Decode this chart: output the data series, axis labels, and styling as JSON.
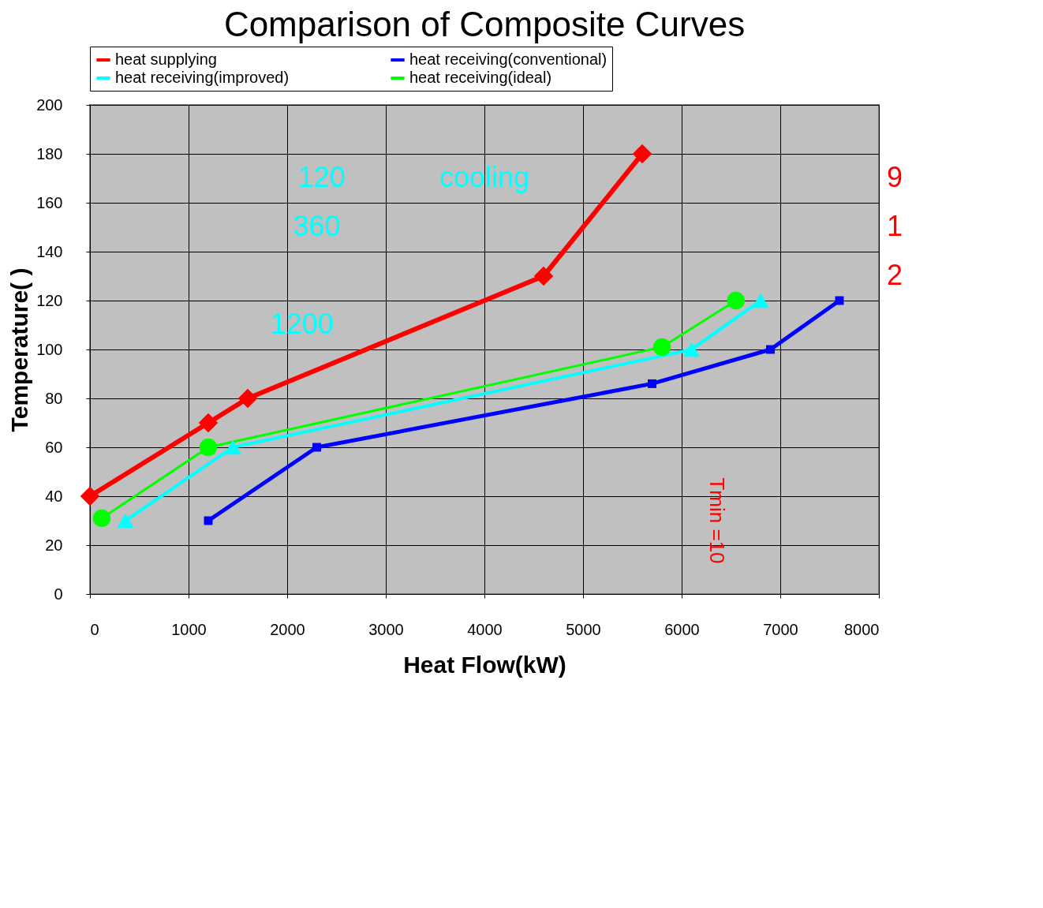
{
  "chart_data": {
    "type": "line",
    "title": "Comparison of Composite Curves",
    "xlabel": "Heat Flow(kW)",
    "ylabel": "Temperature(  )",
    "xlim": [
      0,
      8000
    ],
    "xticks": [
      0,
      1000,
      2000,
      3000,
      4000,
      5000,
      6000,
      7000,
      8000
    ],
    "ylim": [
      0,
      200
    ],
    "yticks": [
      0,
      20,
      40,
      60,
      80,
      100,
      120,
      140,
      160,
      180,
      200
    ],
    "grid": true,
    "legend": "top",
    "line_style": "solid",
    "series": [
      {
        "name": "heat supplying",
        "color": "#ff0000",
        "marker": "diamond",
        "x": [
          0,
          1200,
          1600,
          4600,
          5600
        ],
        "values": [
          40,
          70,
          80,
          130,
          180
        ]
      },
      {
        "name": "heat receiving(conventional)",
        "color": "#0000ff",
        "marker": "square",
        "x": [
          1200,
          2300,
          5700,
          6900,
          7600
        ],
        "values": [
          30,
          60,
          86,
          100,
          120
        ]
      },
      {
        "name": "heat receiving(improved)",
        "color": "#00ffff",
        "marker": "triangle",
        "x": [
          360,
          1450,
          6100,
          6800
        ],
        "values": [
          30,
          60,
          100,
          120
        ]
      },
      {
        "name": "heat receiving(ideal)",
        "color": "#00ff00",
        "marker": "circle",
        "x": [
          120,
          1200,
          5800,
          6550
        ],
        "values": [
          31,
          60,
          101,
          120
        ]
      }
    ],
    "annotations": [
      "120",
      "360",
      "1200",
      "cooling",
      "9",
      "1",
      "2",
      "Tmin =10"
    ]
  }
}
